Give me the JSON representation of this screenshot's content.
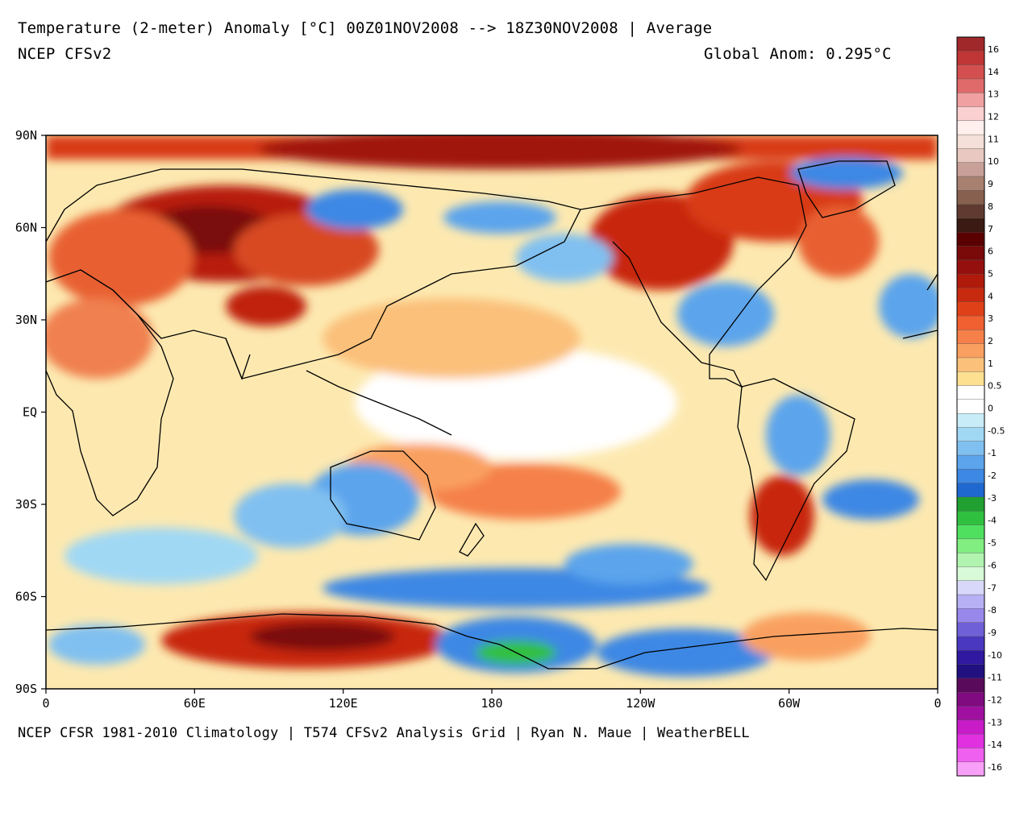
{
  "header": {
    "title": "Temperature (2-meter) Anomaly  [°C] 00Z01NOV2008 --> 18Z30NOV2008 | Average",
    "model": "NCEP CFSv2",
    "global_anom": "Global Anom: 0.295°C"
  },
  "footer": {
    "credits": "NCEP CFSR 1981-2010 Climatology | T574 CFSv2 Analysis Grid | Ryan N. Maue | WeatherBELL"
  },
  "map": {
    "projection": "cylindrical-equidistant",
    "lon_range": [
      0,
      360
    ],
    "lat_range": [
      -90,
      90
    ],
    "lat_ticks": [
      "90N",
      "60N",
      "30N",
      "EQ",
      "30S",
      "60S",
      "90S"
    ],
    "lon_ticks": [
      "0",
      "60E",
      "120E",
      "180",
      "120W",
      "60W",
      "0"
    ]
  },
  "colorbar": {
    "labels": [
      "16",
      "14",
      "13",
      "12",
      "11",
      "10",
      "9",
      "8",
      "7",
      "6",
      "5",
      "4",
      "3",
      "2",
      "1",
      "0.5",
      "0",
      "-0.5",
      "-1",
      "-2",
      "-3",
      "-4",
      "-5",
      "-6",
      "-7",
      "-8",
      "-9",
      "-10",
      "-11",
      "-12",
      "-13",
      "-14",
      "-16"
    ],
    "colors": [
      "#a0282a",
      "#c03535",
      "#d45050",
      "#e06a6a",
      "#f0a0a0",
      "#fad0d0",
      "#fff0ee",
      "#f4e0d8",
      "#e8c8c0",
      "#c8a098",
      "#a88070",
      "#886050",
      "#603a30",
      "#3a1a12",
      "#5a0000",
      "#7a0a0a",
      "#960f0f",
      "#b01a0a",
      "#c82a10",
      "#e04018",
      "#f06030",
      "#f5804a",
      "#f9a060",
      "#fbc07a",
      "#fde090",
      "#ffffff",
      "#ffffff",
      "#c8ecf8",
      "#a0d8f4",
      "#80c0f0",
      "#5ca4ec",
      "#3c88e4",
      "#1f68d0",
      "#20a030",
      "#30c040",
      "#50e060",
      "#80ee80",
      "#b0f4b0",
      "#d8fad8",
      "#d8d8fa",
      "#b8b0f4",
      "#9888ec",
      "#7060d8",
      "#4a38c0",
      "#3018a0",
      "#201080",
      "#5a0a5a",
      "#800a80",
      "#a010a0",
      "#c81cc8",
      "#e030e0",
      "#f060f0",
      "#f8a0f8"
    ]
  }
}
